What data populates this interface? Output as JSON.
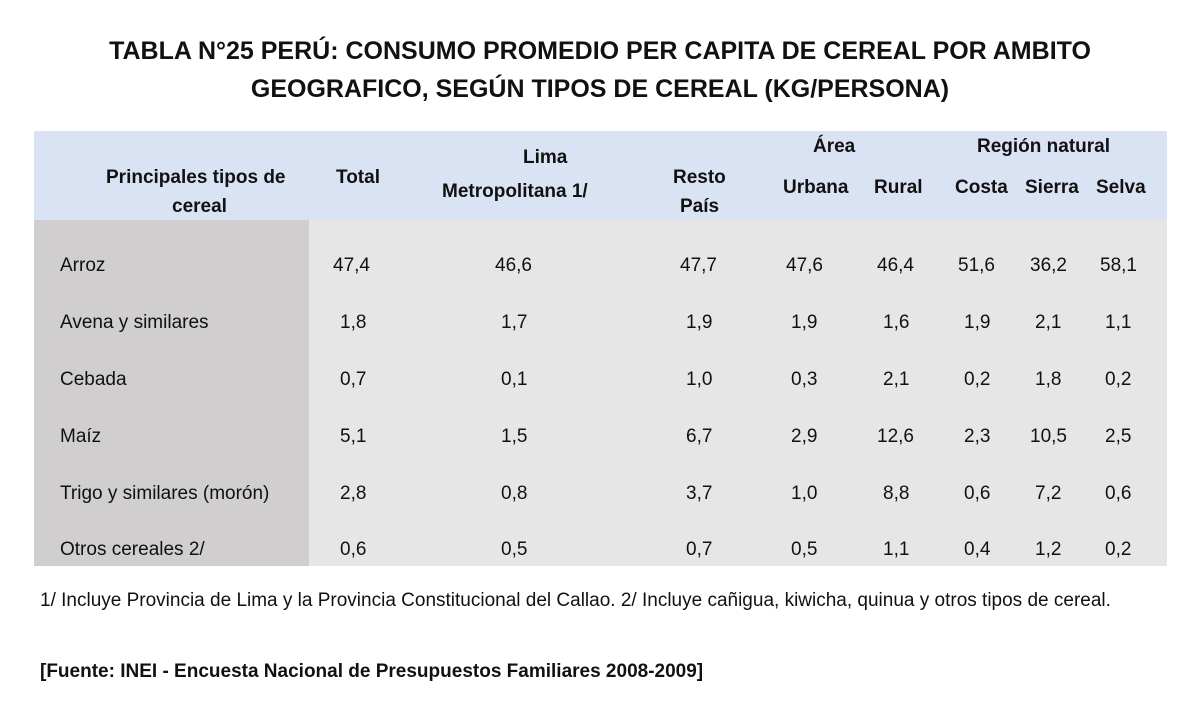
{
  "title": {
    "line1": "TABLA N°25 PERÚ: CONSUMO PROMEDIO PER CAPITA DE CEREAL POR AMBITO",
    "line2": "GEOGRAFICO, SEGÚN TIPOS DE CEREAL (KG/PERSONA)"
  },
  "table": {
    "headers": {
      "type_line1": "Principales tipos de",
      "type_line2": "cereal",
      "total": "Total",
      "lima_line1": "Lima",
      "lima_line2": "Metropolitana 1/",
      "resto_line1": "Resto",
      "resto_line2": "País",
      "area_group": "Área",
      "urbana": "Urbana",
      "rural": "Rural",
      "region_group": "Región natural",
      "costa": "Costa",
      "sierra": "Sierra",
      "selva": "Selva"
    },
    "rows": [
      {
        "label": "Arroz",
        "total": "47,4",
        "lima": "46,6",
        "resto": "47,7",
        "urbana": "47,6",
        "rural": "46,4",
        "costa": "51,6",
        "sierra": "36,2",
        "selva": "58,1"
      },
      {
        "label": "Avena y similares",
        "total": "1,8",
        "lima": "1,7",
        "resto": "1,9",
        "urbana": "1,9",
        "rural": "1,6",
        "costa": "1,9",
        "sierra": "2,1",
        "selva": "1,1"
      },
      {
        "label": "Cebada",
        "total": "0,7",
        "lima": "0,1",
        "resto": "1,0",
        "urbana": "0,3",
        "rural": "2,1",
        "costa": "0,2",
        "sierra": "1,8",
        "selva": "0,2"
      },
      {
        "label": "Maíz",
        "total": "5,1",
        "lima": "1,5",
        "resto": "6,7",
        "urbana": "2,9",
        "rural": "12,6",
        "costa": "2,3",
        "sierra": "10,5",
        "selva": "2,5"
      },
      {
        "label": "Trigo y similares (morón)",
        "total": "2,8",
        "lima": "0,8",
        "resto": "3,7",
        "urbana": "1,0",
        "rural": "8,8",
        "costa": "0,6",
        "sierra": "7,2",
        "selva": "0,6"
      },
      {
        "label": "Otros cereales 2/",
        "total": "0,6",
        "lima": "0,5",
        "resto": "0,7",
        "urbana": "0,5",
        "rural": "1,1",
        "costa": "0,4",
        "sierra": "1,2",
        "selva": "0,2"
      }
    ]
  },
  "note": "1/ Incluye Provincia de Lima y la Provincia Constitucional del Callao. 2/ Incluye cañigua, kiwicha, quinua y otros tipos de cereal.",
  "source": "[Fuente: INEI - Encuesta Nacional de Presupuestos Familiares 2008-2009]",
  "colors": {
    "header_bg": "#dae3f3",
    "body_bg": "#e7e6e6",
    "first_col_bg": "#d0cece"
  }
}
